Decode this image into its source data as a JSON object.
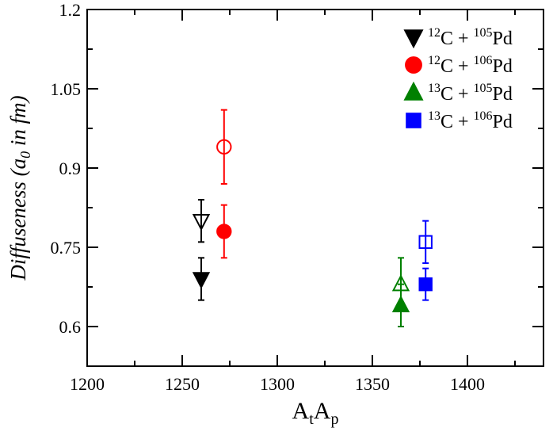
{
  "chart_data": {
    "type": "scatter",
    "xlabel_main": "A",
    "xlabel_sub1": "t",
    "xlabel_main2": "A",
    "xlabel_sub2": "p",
    "ylabel_a": "Diffuseness (a",
    "ylabel_sub": "0",
    "ylabel_b": " in fm)",
    "xlim": [
      1200,
      1440
    ],
    "ylim": [
      0.525,
      1.2
    ],
    "x_ticks": [
      {
        "value": 1200,
        "label": "1200"
      },
      {
        "value": 1250,
        "label": "1250"
      },
      {
        "value": 1300,
        "label": "1300"
      },
      {
        "value": 1350,
        "label": "1350"
      },
      {
        "value": 1400,
        "label": "1400"
      }
    ],
    "y_ticks": [
      {
        "value": 0.6,
        "label": "0.6"
      },
      {
        "value": 0.75,
        "label": "0.75"
      },
      {
        "value": 0.9,
        "label": "0.9"
      },
      {
        "value": 1.05,
        "label": "1.05"
      },
      {
        "value": 1.2,
        "label": "1.2"
      }
    ],
    "x_minor_step": 25,
    "y_minor_step": 0.075,
    "grid": false,
    "legend_position": "top-right",
    "series": [
      {
        "proj_mass": "12",
        "proj": "C",
        "targ_mass": "105",
        "targ": "Pd",
        "marker": "triangle-down",
        "color": "#000000",
        "points": [
          {
            "x": 1260,
            "y": 0.69,
            "err": 0.04,
            "filled": true
          },
          {
            "x": 1260,
            "y": 0.8,
            "err": 0.04,
            "filled": false
          }
        ]
      },
      {
        "proj_mass": "12",
        "proj": "C",
        "targ_mass": "106",
        "targ": "Pd",
        "marker": "circle",
        "color": "#ff0000",
        "points": [
          {
            "x": 1272,
            "y": 0.78,
            "err": 0.05,
            "filled": true
          },
          {
            "x": 1272,
            "y": 0.94,
            "err": 0.07,
            "filled": false
          }
        ]
      },
      {
        "proj_mass": "13",
        "proj": "C",
        "targ_mass": "105",
        "targ": "Pd",
        "marker": "triangle-up",
        "color": "#008000",
        "points": [
          {
            "x": 1365,
            "y": 0.64,
            "err": 0.04,
            "filled": true
          },
          {
            "x": 1365,
            "y": 0.68,
            "err": 0.05,
            "filled": false
          }
        ]
      },
      {
        "proj_mass": "13",
        "proj": "C",
        "targ_mass": "106",
        "targ": "Pd",
        "marker": "square",
        "color": "#0000ff",
        "points": [
          {
            "x": 1378,
            "y": 0.68,
            "err": 0.03,
            "filled": true
          },
          {
            "x": 1378,
            "y": 0.76,
            "err": 0.04,
            "filled": false
          }
        ]
      }
    ]
  }
}
